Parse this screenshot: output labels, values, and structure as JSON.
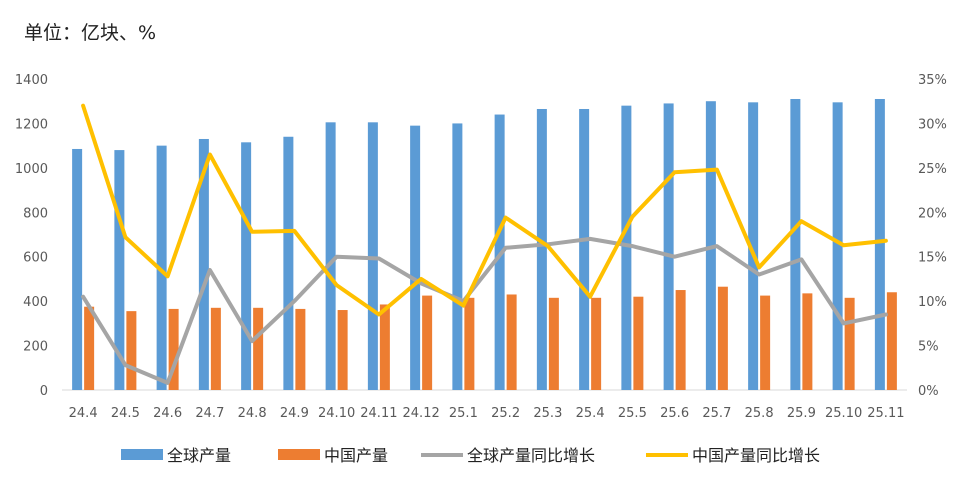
{
  "unit_label": "单位：亿块、%",
  "colors": {
    "global_bar": "#5B9BD5",
    "china_bar": "#ED7D31",
    "global_yoy": "#A5A5A5",
    "china_yoy": "#FFC000",
    "axis": "#D9D9D9",
    "tick_text": "#595959"
  },
  "chart_data": {
    "type": "bar",
    "title": "",
    "categories": [
      "24.4",
      "24.5",
      "24.6",
      "24.7",
      "24.8",
      "24.9",
      "24.10",
      "24.11",
      "24.12",
      "25.1",
      "25.2",
      "25.3",
      "25.4",
      "25.5",
      "25.6",
      "25.7",
      "25.8",
      "25.9",
      "25.10",
      "25.11"
    ],
    "y_left": {
      "range": [
        0,
        1400
      ],
      "ticks": [
        "0",
        "200",
        "400",
        "600",
        "800",
        "1000",
        "1200",
        "1400"
      ]
    },
    "y_right": {
      "range": [
        0,
        35
      ],
      "ticks": [
        "0%",
        "5%",
        "10%",
        "15%",
        "20%",
        "25%",
        "30%",
        "35%"
      ]
    },
    "grid": false,
    "legend_position": "bottom",
    "series": [
      {
        "name": "全球产量",
        "type": "bar",
        "axis": "left",
        "values": [
          1085,
          1080,
          1100,
          1130,
          1115,
          1140,
          1205,
          1205,
          1190,
          1200,
          1240,
          1265,
          1265,
          1280,
          1290,
          1300,
          1295,
          1310,
          1295,
          1310
        ]
      },
      {
        "name": "中国产量",
        "type": "bar",
        "axis": "left",
        "values": [
          375,
          355,
          365,
          370,
          370,
          365,
          360,
          385,
          425,
          415,
          430,
          415,
          415,
          420,
          450,
          465,
          425,
          435,
          415,
          440
        ]
      },
      {
        "name": "全球产量同比增长",
        "type": "line",
        "axis": "right",
        "values": [
          10.5,
          2.8,
          0.8,
          13.5,
          5.5,
          10.0,
          15.0,
          14.8,
          12.0,
          10.0,
          16.0,
          16.4,
          17.0,
          16.2,
          15.0,
          16.2,
          13.0,
          14.7,
          7.5,
          8.5
        ]
      },
      {
        "name": "中国产量同比增长",
        "type": "line",
        "axis": "right",
        "values": [
          32.0,
          17.2,
          12.8,
          26.5,
          17.8,
          17.9,
          11.8,
          8.5,
          12.5,
          9.5,
          19.4,
          16.2,
          10.5,
          19.5,
          24.5,
          24.8,
          13.8,
          19.0,
          16.3,
          16.8
        ]
      }
    ]
  }
}
